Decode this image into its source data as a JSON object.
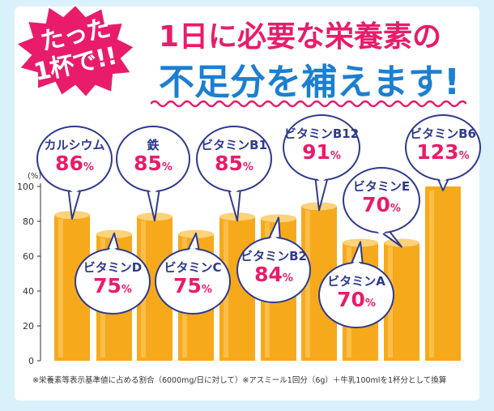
{
  "badge": {
    "line1": "たった",
    "line2": "1杯で!!"
  },
  "headline": {
    "line1": "1日に必要な栄養素の",
    "line2": "不足分を補えます!"
  },
  "colors": {
    "bar_fill": "#f7a91c",
    "bar_top": "#fcd27a",
    "accent_pink": "#e81c6b",
    "accent_blue": "#1c7fd0",
    "bubble_border": "#2e3a8c",
    "background": "#d9f1fb"
  },
  "chart_data": {
    "type": "bar",
    "ylabel": "(%)",
    "ylim": [
      0,
      100
    ],
    "yticks": [
      0,
      20,
      40,
      60,
      80,
      100
    ],
    "unit": "%",
    "categories": [
      "カルシウム",
      "ビタミンD",
      "鉄",
      "ビタミンC",
      "ビタミンB1",
      "ビタミンB2",
      "ビタミンB12",
      "ビタミンA",
      "ビタミンE",
      "ビタミンB6"
    ],
    "values": [
      86,
      75,
      85,
      75,
      85,
      84,
      91,
      70,
      70,
      123
    ],
    "value_labels": [
      "86",
      "75",
      "85",
      "75",
      "85",
      "84",
      "91",
      "70",
      "70",
      "123"
    ],
    "percent_sign": "%"
  },
  "footnote": "※栄養素等表示基準値に占める割合（6000mg/日に対して）※アスミール1回分（6g）＋牛乳100mlを1杯分として換算"
}
